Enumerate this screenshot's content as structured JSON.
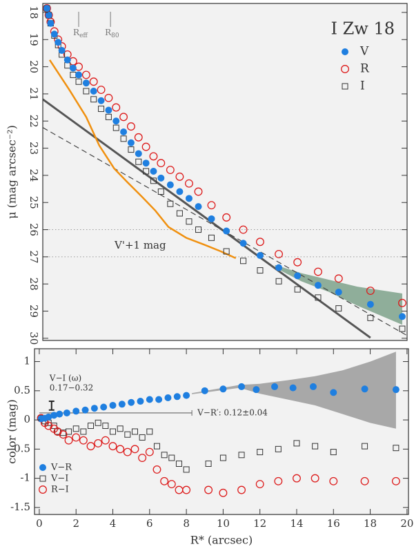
{
  "chart_data": [
    {
      "type": "scatter",
      "title": "I Zw 18",
      "y_label": "μ (mag arcsec⁻²)",
      "xlim": [
        0.18,
        19.66
      ],
      "ylim": [
        17.67,
        30.08
      ],
      "y_inverted": true,
      "yticks": [
        18,
        19,
        20,
        21,
        22,
        23,
        24,
        25,
        26,
        27,
        28,
        29,
        30
      ],
      "markers": [
        {
          "label": "R",
          "sub": "eff",
          "x": 2.1
        },
        {
          "label": "R",
          "sub": "80",
          "x": 3.8
        }
      ],
      "hlines": [
        26,
        27
      ],
      "bands": [
        {
          "color": "#8fae9a",
          "x": [
            12.6,
            14,
            15.5,
            17,
            19.4
          ],
          "lower": [
            27.3,
            27.6,
            27.85,
            28.1,
            28.35
          ],
          "upper": [
            27.4,
            27.9,
            28.3,
            28.8,
            29.5
          ]
        }
      ],
      "lines": [
        {
          "color": "#555555",
          "width": 3,
          "dashed": false,
          "x": [
            0.18,
            17.7
          ],
          "y": [
            21.2,
            29.98
          ]
        },
        {
          "color": "#444444",
          "width": 1.2,
          "dashed": true,
          "x": [
            0.18,
            19.66
          ],
          "y": [
            22.24,
            29.9
          ]
        },
        {
          "color": "#f0900f",
          "width": 2.5,
          "dashed": false,
          "x": [
            0.55,
            1.6,
            2.5,
            3.2,
            4.0,
            4.7,
            5.5,
            6.2,
            6.9,
            7.85,
            8.8,
            9.7,
            10.5
          ],
          "y": [
            19.75,
            20.85,
            21.85,
            22.9,
            23.75,
            24.25,
            24.8,
            25.3,
            25.9,
            26.3,
            26.55,
            26.8,
            27.05
          ]
        }
      ],
      "annotation": "V'+1 mag",
      "series": [
        {
          "name": "R",
          "marker": "circle-open",
          "color": "#dd1c1c",
          "x": [
            0.4,
            0.5,
            0.6,
            0.8,
            1.0,
            1.2,
            1.5,
            1.8,
            2.1,
            2.5,
            2.9,
            3.3,
            3.7,
            4.1,
            4.5,
            4.9,
            5.3,
            5.7,
            6.1,
            6.5,
            7.0,
            7.5,
            8.0,
            8.5,
            9.2,
            10.0,
            10.9,
            11.8,
            12.8,
            13.8,
            14.9,
            16.0,
            17.7,
            19.4
          ],
          "values": [
            17.85,
            18.1,
            18.35,
            18.7,
            19.0,
            19.25,
            19.55,
            19.8,
            20.0,
            20.3,
            20.55,
            20.85,
            21.15,
            21.5,
            21.85,
            22.2,
            22.6,
            22.95,
            23.3,
            23.55,
            23.8,
            24.05,
            24.3,
            24.6,
            25.1,
            25.55,
            26.0,
            26.45,
            26.9,
            27.2,
            27.55,
            27.8,
            28.25,
            28.7
          ]
        },
        {
          "name": "I",
          "marker": "square-open",
          "color": "#333333",
          "x": [
            0.4,
            0.5,
            0.6,
            0.8,
            1.0,
            1.2,
            1.5,
            1.8,
            2.1,
            2.5,
            2.9,
            3.3,
            3.7,
            4.1,
            4.5,
            4.9,
            5.3,
            5.7,
            6.1,
            6.5,
            7.0,
            7.5,
            8.0,
            8.5,
            9.2,
            10.0,
            10.9,
            11.8,
            12.8,
            13.8,
            14.9,
            16.0,
            17.7,
            19.4
          ],
          "values": [
            17.85,
            18.1,
            18.4,
            18.85,
            19.2,
            19.55,
            19.95,
            20.3,
            20.55,
            20.9,
            21.2,
            21.55,
            21.85,
            22.25,
            22.65,
            23.05,
            23.5,
            23.85,
            24.2,
            24.6,
            25.05,
            25.4,
            25.7,
            26.0,
            26.3,
            26.8,
            27.15,
            27.5,
            27.9,
            28.2,
            28.5,
            28.9,
            29.25,
            29.65
          ]
        },
        {
          "name": "V",
          "marker": "circle-filled",
          "color": "#1f7fe0",
          "x": [
            0.4,
            0.5,
            0.6,
            0.8,
            1.0,
            1.2,
            1.5,
            1.8,
            2.1,
            2.5,
            2.9,
            3.3,
            3.7,
            4.1,
            4.5,
            4.9,
            5.3,
            5.7,
            6.1,
            6.5,
            7.0,
            7.5,
            8.0,
            8.5,
            9.2,
            10.0,
            10.9,
            11.8,
            12.8,
            13.8,
            14.9,
            16.0,
            17.7,
            19.4
          ],
          "values": [
            17.85,
            18.1,
            18.4,
            18.8,
            19.1,
            19.4,
            19.75,
            20.05,
            20.3,
            20.6,
            20.9,
            21.25,
            21.6,
            22.0,
            22.4,
            22.8,
            23.2,
            23.55,
            23.85,
            24.1,
            24.35,
            24.6,
            24.85,
            25.15,
            25.6,
            26.05,
            26.5,
            26.95,
            27.4,
            27.7,
            28.05,
            28.3,
            28.75,
            29.2
          ]
        }
      ],
      "legend_order": [
        2,
        0,
        1
      ]
    },
    {
      "type": "scatter",
      "x_label": "R* (arcsec)",
      "y_label": "color (mag)",
      "xlim": [
        -0.26,
        20.08
      ],
      "ylim": [
        -1.62,
        1.22
      ],
      "y_inverted": false,
      "xticks": [
        0,
        2,
        4,
        6,
        8,
        10,
        12,
        14,
        16,
        18,
        20
      ],
      "yticks": [
        1,
        0.5,
        0,
        -0.5,
        -1,
        -1.5
      ],
      "bands": [
        {
          "color": "#a8a8a8",
          "x": [
            8.3,
            10.9,
            12,
            13.5,
            15,
            16.5,
            18,
            19.4
          ],
          "lower": [
            0.44,
            0.55,
            0.45,
            0.35,
            0.25,
            0.1,
            -0.05,
            -0.15
          ],
          "upper": [
            0.46,
            0.6,
            0.62,
            0.68,
            0.75,
            0.85,
            1.0,
            1.17
          ]
        }
      ],
      "refline": {
        "y": 0.12,
        "x": [
          0,
          8.3
        ],
        "label": "V−R′: 0.12±0.04"
      },
      "errorbar": {
        "x": 0.67,
        "low": 0.17,
        "high": 0.32,
        "label": "V−I (ω)",
        "range_label": "0.17−0.32"
      },
      "series": [
        {
          "name": "V−I",
          "marker": "square-open",
          "color": "#333333",
          "x": [
            0.1,
            0.3,
            0.5,
            0.8,
            1.0,
            1.3,
            1.6,
            2.0,
            2.4,
            2.8,
            3.2,
            3.6,
            4.0,
            4.4,
            4.8,
            5.2,
            5.6,
            6.0,
            6.4,
            6.8,
            7.2,
            7.6,
            8.0,
            9.2,
            10.0,
            11.0,
            12.0,
            13.0,
            14.0,
            15.0,
            16.0,
            17.7,
            19.4
          ],
          "values": [
            0.03,
            -0.02,
            -0.05,
            -0.1,
            -0.2,
            -0.22,
            -0.2,
            -0.15,
            -0.2,
            -0.1,
            -0.05,
            -0.1,
            -0.2,
            -0.15,
            -0.25,
            -0.2,
            -0.3,
            -0.2,
            -0.45,
            -0.6,
            -0.65,
            -0.75,
            -0.85,
            -0.75,
            -0.65,
            -0.6,
            -0.55,
            -0.5,
            -0.4,
            -0.45,
            -0.55,
            -0.45,
            -0.48
          ]
        },
        {
          "name": "R−I",
          "marker": "circle-open",
          "color": "#dd1c1c",
          "x": [
            0.1,
            0.3,
            0.5,
            0.8,
            1.0,
            1.3,
            1.6,
            2.0,
            2.4,
            2.8,
            3.2,
            3.6,
            4.0,
            4.4,
            4.8,
            5.2,
            5.6,
            6.0,
            6.4,
            6.8,
            7.2,
            7.6,
            8.0,
            9.2,
            10.0,
            11.0,
            12.0,
            13.0,
            14.0,
            15.0,
            16.0,
            17.7,
            19.4
          ],
          "values": [
            0.03,
            -0.05,
            -0.1,
            -0.15,
            -0.2,
            -0.25,
            -0.35,
            -0.3,
            -0.35,
            -0.45,
            -0.4,
            -0.35,
            -0.45,
            -0.5,
            -0.55,
            -0.5,
            -0.65,
            -0.55,
            -0.85,
            -1.05,
            -1.1,
            -1.2,
            -1.2,
            -1.2,
            -1.25,
            -1.2,
            -1.1,
            -1.05,
            -1.0,
            -1.0,
            -1.05,
            -1.05,
            -1.05
          ]
        },
        {
          "name": "V−R",
          "marker": "circle-filled",
          "color": "#1f7fe0",
          "x": [
            0.1,
            0.3,
            0.5,
            0.8,
            1.1,
            1.5,
            2.0,
            2.5,
            3.0,
            3.5,
            4.0,
            4.5,
            5.0,
            5.5,
            6.0,
            6.5,
            7.0,
            7.5,
            8.0,
            9.0,
            10.0,
            11.0,
            11.8,
            12.8,
            13.8,
            14.9,
            16.0,
            17.7,
            19.4
          ],
          "values": [
            0.02,
            0.03,
            0.05,
            0.08,
            0.1,
            0.12,
            0.15,
            0.17,
            0.2,
            0.22,
            0.25,
            0.27,
            0.3,
            0.32,
            0.35,
            0.35,
            0.38,
            0.4,
            0.42,
            0.5,
            0.53,
            0.57,
            0.52,
            0.57,
            0.55,
            0.57,
            0.47,
            0.53,
            0.52
          ]
        }
      ],
      "legend_order": [
        2,
        0,
        1
      ]
    }
  ]
}
